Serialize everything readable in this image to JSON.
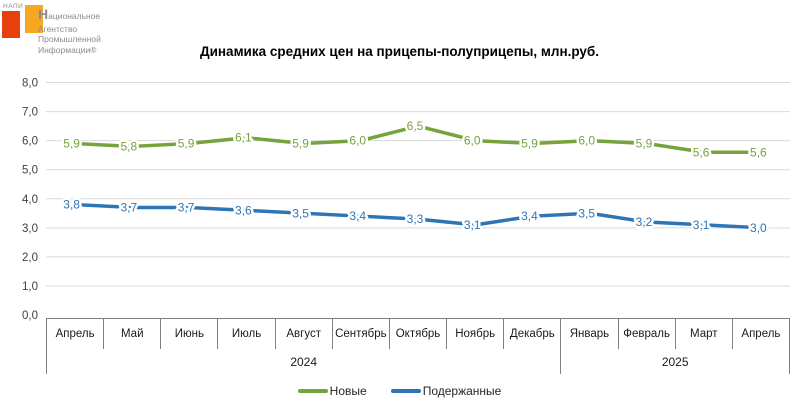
{
  "logo": {
    "brand_small": "НАПИ",
    "caption_lines": [
      "Национальное",
      "Агентство",
      "Промышленной",
      "Информации®"
    ]
  },
  "title": "Динамика средних цен на прицепы-полуприцепы, млн.руб.",
  "chart_data": {
    "type": "line",
    "title": "Динамика средних цен на прицепы-полуприцепы, млн.руб.",
    "categories": [
      "Апрель",
      "Май",
      "Июнь",
      "Июль",
      "Август",
      "Сентябрь",
      "Октябрь",
      "Ноябрь",
      "Декабрь",
      "Январь",
      "Февраль",
      "Март",
      "Апрель"
    ],
    "year_groups": [
      {
        "label": "2024",
        "span": 9
      },
      {
        "label": "2025",
        "span": 4
      }
    ],
    "series": [
      {
        "name": "Новые",
        "color": "#76a33c",
        "values": [
          5.9,
          5.8,
          5.9,
          6.1,
          5.9,
          6.0,
          6.5,
          6.0,
          5.9,
          6.0,
          5.9,
          5.6,
          5.6
        ]
      },
      {
        "name": "Подержанные",
        "color": "#2e75b6",
        "values": [
          3.8,
          3.7,
          3.7,
          3.6,
          3.5,
          3.4,
          3.3,
          3.1,
          3.4,
          3.5,
          3.2,
          3.1,
          3.0
        ]
      }
    ],
    "ylim": [
      0,
      8
    ],
    "ytick_step": 1,
    "ytick_labels": [
      "0,0",
      "1,0",
      "2,0",
      "3,0",
      "4,0",
      "5,0",
      "6,0",
      "7,0",
      "8,0"
    ],
    "grid": true,
    "value_labels": true,
    "decimal_separator": ",",
    "legend_position": "bottom",
    "colors": {
      "grid_line": "#d9d9d9",
      "axis_line": "#808080",
      "tick_text": "#404040"
    }
  }
}
